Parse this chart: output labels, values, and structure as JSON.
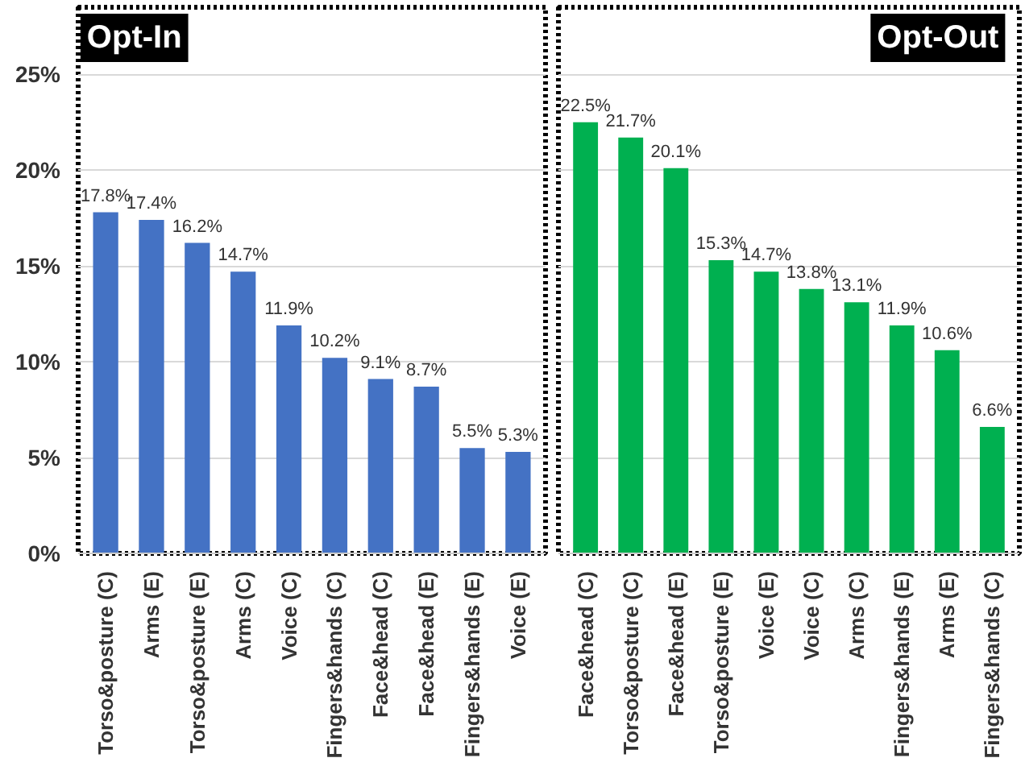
{
  "chart_data": [
    {
      "type": "bar",
      "title": "Opt-In",
      "categories": [
        "Torso&posture (C)",
        "Arms (E)",
        "Torso&posture (E)",
        "Arms (C)",
        "Voice (C)",
        "Fingers&hands (C)",
        "Face&head (C)",
        "Face&head (E)",
        "Fingers&hands (E)",
        "Voice (E)"
      ],
      "values": [
        17.8,
        17.4,
        16.2,
        14.7,
        11.9,
        10.2,
        9.1,
        8.7,
        5.5,
        5.3
      ],
      "value_labels": [
        "17.8%",
        "17.4%",
        "16.2%",
        "14.7%",
        "11.9%",
        "10.2%",
        "9.1%",
        "8.7%",
        "5.5%",
        "5.3%"
      ],
      "color": "#4472c4",
      "ylim": [
        0,
        28.5
      ],
      "yticks": [
        {
          "value": 0,
          "label": "0%"
        },
        {
          "value": 5,
          "label": "5%"
        },
        {
          "value": 10,
          "label": "10%"
        },
        {
          "value": 15,
          "label": "15%"
        },
        {
          "value": 20,
          "label": "20%"
        },
        {
          "value": 25,
          "label": "25%"
        }
      ],
      "grid": "y"
    },
    {
      "type": "bar",
      "title": "Opt-Out",
      "categories": [
        "Face&head (C)",
        "Torso&posture (C)",
        "Face&head (E)",
        "Torso&posture (E)",
        "Voice (E)",
        "Voice (C)",
        "Arms (C)",
        "Fingers&hands (E)",
        "Arms (E)",
        "Fingers&hands (C)"
      ],
      "values": [
        22.5,
        21.7,
        20.1,
        15.3,
        14.7,
        13.8,
        13.1,
        11.9,
        10.6,
        6.6
      ],
      "value_labels": [
        "22.5%",
        "21.7%",
        "20.1%",
        "15.3%",
        "14.7%",
        "13.8%",
        "13.1%",
        "11.9%",
        "10.6%",
        "6.6%"
      ],
      "color": "#00b050",
      "ylim": [
        0,
        28.5
      ],
      "yticks": [
        {
          "value": 0,
          "label": null
        },
        {
          "value": 5,
          "label": null
        },
        {
          "value": 10,
          "label": null
        },
        {
          "value": 15,
          "label": null
        },
        {
          "value": 20,
          "label": null
        },
        {
          "value": 25,
          "label": null
        }
      ],
      "grid": "y",
      "tick_labels": "x"
    }
  ]
}
